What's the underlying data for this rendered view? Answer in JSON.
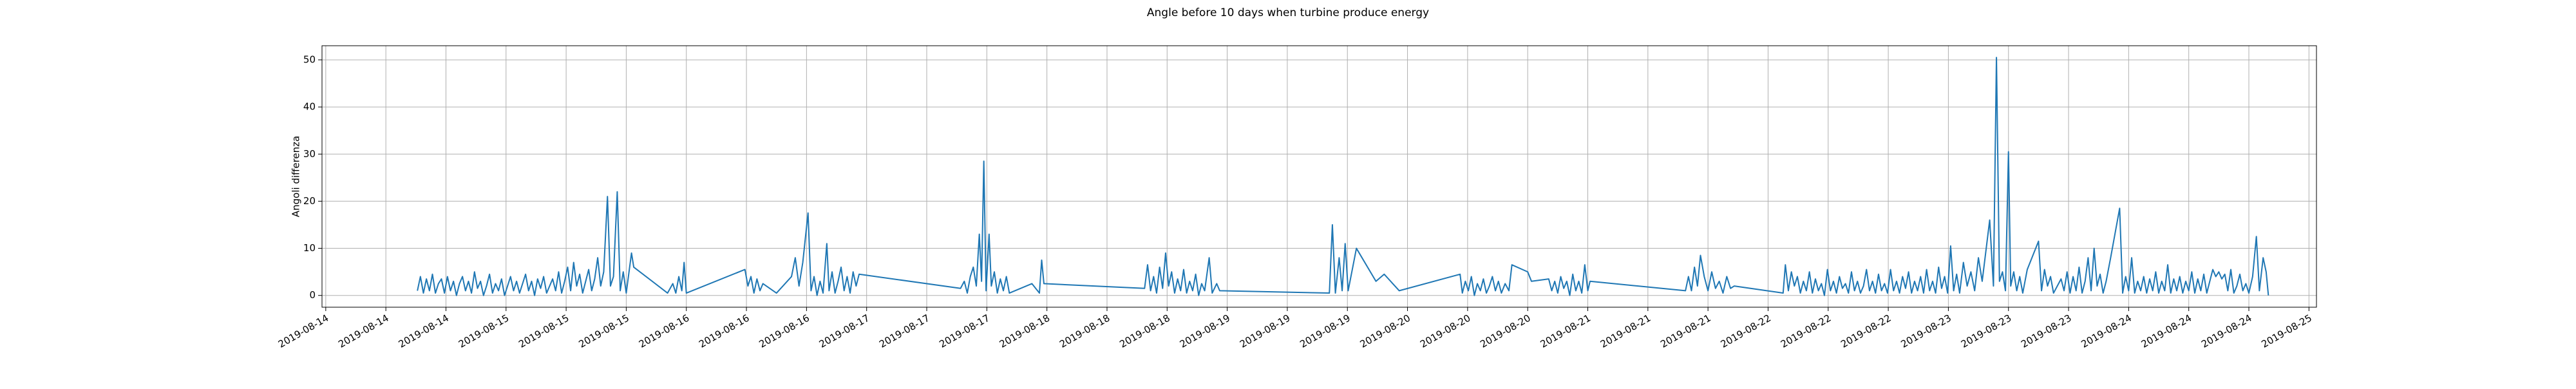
{
  "chart_data": {
    "type": "line",
    "title": "Angle before 10 days when turbine produce energy",
    "y_label": "Angoli differenza",
    "color": "#1f77b4",
    "grid": true,
    "xlim": [
      -0.5,
      265
    ],
    "ylim": [
      -2.5,
      53
    ],
    "yticks": [
      0,
      10,
      20,
      30,
      40,
      50
    ],
    "xticks": [
      {
        "value": 0,
        "label": "2019-08-14"
      },
      {
        "value": 8,
        "label": "2019-08-14"
      },
      {
        "value": 16,
        "label": "2019-08-14"
      },
      {
        "value": 24,
        "label": "2019-08-15"
      },
      {
        "value": 32,
        "label": "2019-08-15"
      },
      {
        "value": 40,
        "label": "2019-08-15"
      },
      {
        "value": 48,
        "label": "2019-08-16"
      },
      {
        "value": 56,
        "label": "2019-08-16"
      },
      {
        "value": 64,
        "label": "2019-08-16"
      },
      {
        "value": 72,
        "label": "2019-08-17"
      },
      {
        "value": 80,
        "label": "2019-08-17"
      },
      {
        "value": 88,
        "label": "2019-08-17"
      },
      {
        "value": 96,
        "label": "2019-08-18"
      },
      {
        "value": 104,
        "label": "2019-08-18"
      },
      {
        "value": 112,
        "label": "2019-08-18"
      },
      {
        "value": 120,
        "label": "2019-08-19"
      },
      {
        "value": 128,
        "label": "2019-08-19"
      },
      {
        "value": 136,
        "label": "2019-08-19"
      },
      {
        "value": 144,
        "label": "2019-08-20"
      },
      {
        "value": 152,
        "label": "2019-08-20"
      },
      {
        "value": 160,
        "label": "2019-08-20"
      },
      {
        "value": 168,
        "label": "2019-08-21"
      },
      {
        "value": 176,
        "label": "2019-08-21"
      },
      {
        "value": 184,
        "label": "2019-08-21"
      },
      {
        "value": 192,
        "label": "2019-08-22"
      },
      {
        "value": 200,
        "label": "2019-08-22"
      },
      {
        "value": 208,
        "label": "2019-08-22"
      },
      {
        "value": 216,
        "label": "2019-08-23"
      },
      {
        "value": 224,
        "label": "2019-08-23"
      },
      {
        "value": 232,
        "label": "2019-08-23"
      },
      {
        "value": 240,
        "label": "2019-08-24"
      },
      {
        "value": 248,
        "label": "2019-08-24"
      },
      {
        "value": 256,
        "label": "2019-08-24"
      },
      {
        "value": 264,
        "label": "2019-08-25"
      }
    ],
    "x": [
      12.2,
      12.6,
      13.0,
      13.4,
      13.8,
      14.2,
      14.6,
      15.0,
      15.4,
      15.8,
      16.2,
      16.6,
      17.0,
      17.4,
      17.8,
      18.2,
      18.6,
      19.0,
      19.4,
      19.8,
      20.2,
      20.6,
      21.0,
      21.4,
      21.8,
      22.2,
      22.6,
      23.0,
      23.4,
      23.8,
      24.2,
      24.6,
      25.0,
      25.4,
      25.8,
      26.2,
      26.6,
      27.0,
      27.4,
      27.8,
      28.2,
      28.6,
      29.0,
      29.4,
      29.8,
      30.2,
      30.6,
      31.0,
      31.4,
      31.8,
      32.2,
      32.6,
      33.0,
      33.4,
      33.8,
      34.2,
      34.6,
      35.0,
      35.4,
      35.8,
      36.2,
      36.6,
      37.0,
      37.5,
      37.9,
      38.3,
      38.8,
      39.2,
      39.6,
      40.0,
      40.7,
      41.0,
      45.5,
      46.2,
      46.6,
      47.0,
      47.4,
      47.7,
      48.0,
      55.8,
      56.2,
      56.6,
      57.0,
      57.4,
      57.8,
      58.2,
      60.0,
      62.0,
      62.5,
      63.0,
      63.5,
      64.2,
      64.6,
      65.0,
      65.4,
      65.8,
      66.2,
      66.7,
      67.0,
      67.4,
      67.8,
      68.2,
      68.6,
      69.0,
      69.4,
      69.8,
      70.2,
      70.6,
      71.0,
      84.5,
      85.0,
      85.4,
      85.8,
      86.2,
      86.6,
      87.0,
      87.3,
      87.6,
      87.9,
      88.3,
      88.6,
      89.0,
      89.4,
      89.8,
      90.2,
      90.6,
      91.0,
      94.0,
      95.0,
      95.3,
      95.6,
      109.0,
      109.4,
      109.8,
      110.2,
      110.6,
      111.0,
      111.4,
      111.8,
      112.2,
      112.6,
      113.0,
      113.4,
      113.8,
      114.2,
      114.6,
      115.0,
      115.4,
      115.8,
      116.2,
      116.6,
      117.0,
      117.6,
      118.0,
      118.6,
      119.0,
      133.6,
      134.0,
      134.4,
      134.9,
      135.3,
      135.7,
      136.1,
      137.2,
      139.8,
      140.9,
      142.9,
      151.0,
      151.3,
      151.7,
      152.1,
      152.5,
      152.9,
      153.3,
      153.7,
      154.1,
      154.5,
      154.9,
      155.3,
      155.7,
      156.1,
      156.5,
      157.0,
      157.5,
      157.9,
      160.0,
      160.5,
      162.8,
      163.2,
      163.6,
      164.0,
      164.4,
      164.8,
      165.2,
      165.6,
      166.0,
      166.4,
      166.8,
      167.2,
      167.6,
      168.0,
      168.3,
      181.0,
      181.4,
      181.8,
      182.2,
      182.6,
      183.0,
      183.5,
      184.0,
      184.5,
      185.0,
      185.5,
      186.0,
      186.5,
      187.0,
      187.5,
      194.0,
      194.3,
      194.7,
      195.1,
      195.5,
      195.9,
      196.3,
      196.7,
      197.1,
      197.5,
      197.9,
      198.3,
      198.7,
      199.1,
      199.5,
      199.9,
      200.3,
      200.7,
      201.1,
      201.5,
      201.9,
      202.3,
      202.7,
      203.1,
      203.5,
      203.9,
      204.3,
      204.7,
      205.1,
      205.5,
      205.9,
      206.3,
      206.7,
      207.1,
      207.5,
      207.9,
      208.3,
      208.7,
      209.1,
      209.5,
      209.9,
      210.3,
      210.7,
      211.1,
      211.5,
      211.9,
      212.3,
      212.7,
      213.1,
      213.5,
      213.9,
      214.3,
      214.7,
      215.1,
      215.5,
      215.9,
      216.3,
      216.7,
      217.1,
      217.5,
      218.0,
      218.5,
      219.0,
      219.5,
      220.0,
      220.5,
      221.5,
      222.0,
      222.4,
      222.8,
      223.2,
      223.6,
      224.0,
      224.3,
      224.7,
      225.1,
      225.5,
      225.9,
      226.5,
      228.0,
      228.4,
      228.8,
      229.2,
      229.6,
      230.0,
      231.0,
      231.4,
      231.8,
      232.2,
      232.6,
      233.0,
      233.4,
      233.8,
      234.2,
      234.6,
      235.0,
      235.4,
      235.8,
      236.2,
      236.6,
      237.0,
      237.6,
      238.8,
      239.2,
      239.6,
      240.0,
      240.4,
      240.8,
      241.2,
      241.6,
      242.0,
      242.4,
      242.8,
      243.2,
      243.6,
      244.0,
      244.4,
      244.8,
      245.2,
      245.6,
      246.0,
      246.4,
      246.8,
      247.2,
      247.6,
      248.0,
      248.4,
      248.8,
      249.2,
      249.6,
      250.0,
      250.4,
      250.8,
      251.2,
      251.6,
      252.0,
      252.4,
      252.8,
      253.2,
      253.6,
      254.0,
      254.4,
      254.8,
      255.2,
      255.6,
      256.0,
      256.5,
      257.0,
      257.4,
      257.9,
      258.3,
      258.6
    ],
    "values": [
      1,
      4,
      0.5,
      3.5,
      1,
      4.5,
      0.5,
      2.5,
      3.5,
      0.5,
      4,
      1,
      3,
      0,
      2.5,
      4,
      1,
      3,
      0.5,
      5,
      1.5,
      3,
      0,
      2,
      4.5,
      0.5,
      2.5,
      1,
      3.5,
      0,
      2,
      4,
      1,
      3,
      0.5,
      2.5,
      4.5,
      1,
      3,
      0,
      3.5,
      1.5,
      4,
      0.5,
      2,
      3.5,
      1,
      5,
      0.5,
      3,
      6,
      1,
      7,
      2,
      4.5,
      0.5,
      3,
      5.5,
      1,
      3.5,
      8,
      2,
      5,
      21,
      2,
      4,
      22,
      1,
      5,
      0.5,
      9,
      6,
      0.5,
      2.5,
      0.5,
      4,
      1,
      7,
      0.5,
      5.5,
      2,
      4,
      0.5,
      3.5,
      1,
      2.5,
      0.5,
      4,
      8,
      2,
      7,
      17.5,
      1,
      4,
      0,
      3,
      0.5,
      11,
      1,
      5,
      0.5,
      3,
      6,
      1,
      4,
      0.5,
      5,
      2,
      4.5,
      1.5,
      3,
      0.5,
      4,
      6,
      2,
      13,
      3,
      28.5,
      1,
      13,
      2,
      5,
      0.5,
      3.5,
      1,
      4,
      0.5,
      2.5,
      0.5,
      7.5,
      2.5,
      1.5,
      6.5,
      1,
      4,
      0.5,
      6,
      1.5,
      9,
      2,
      5,
      0.5,
      3.5,
      1,
      5.5,
      0.5,
      3,
      1,
      4.5,
      0,
      2.5,
      1,
      8,
      0.5,
      2.5,
      1,
      0.5,
      15,
      0.5,
      8,
      1,
      11,
      1,
      10,
      3,
      4.5,
      1,
      4.5,
      0.5,
      3,
      1,
      4,
      0,
      2.5,
      1,
      3.5,
      0.5,
      2,
      4,
      1,
      3,
      0.5,
      2.5,
      1,
      6.5,
      5,
      3,
      3.5,
      1,
      3,
      0.5,
      4,
      1.5,
      3,
      0,
      4.5,
      1,
      3,
      0.5,
      6.5,
      1,
      3,
      1,
      4,
      1,
      6,
      2,
      8.5,
      4,
      1,
      5,
      1.5,
      3,
      0.5,
      4,
      1.5,
      2,
      0.5,
      6.5,
      1,
      5,
      2,
      4,
      0.5,
      3,
      1,
      5,
      0.5,
      3.5,
      1,
      2.5,
      0,
      5.5,
      1,
      3,
      0.5,
      4,
      1.5,
      2.5,
      0.5,
      5,
      1,
      3,
      0.5,
      2,
      5.5,
      1,
      3,
      0.5,
      4.5,
      1,
      2.5,
      0.5,
      5.5,
      1,
      3,
      0.5,
      4,
      1.5,
      5,
      0.5,
      3,
      1,
      4,
      0.5,
      5.5,
      1,
      3,
      0.5,
      6,
      1.5,
      4,
      0.5,
      10.5,
      1,
      4.5,
      0.5,
      7,
      2,
      5,
      1,
      8,
      3,
      16,
      2,
      50.5,
      3,
      5,
      1,
      30.5,
      2,
      5,
      1,
      4,
      0.5,
      5.5,
      11.5,
      1,
      5.5,
      2,
      4,
      0.5,
      3.5,
      1,
      5,
      0.5,
      4,
      1,
      6,
      0.5,
      3,
      8,
      1,
      10,
      2,
      4.5,
      0.5,
      3,
      8,
      18.5,
      0.5,
      4,
      1,
      8,
      0.5,
      3,
      1,
      4,
      0.5,
      3.5,
      1,
      5,
      0.5,
      3,
      1,
      6.5,
      0.5,
      3.5,
      1,
      4,
      0.5,
      3,
      1,
      5,
      0.5,
      3.5,
      1,
      4.5,
      0.5,
      3,
      5.5,
      4,
      5,
      3.5,
      4.5,
      1,
      5.5,
      0.5,
      2,
      4.5,
      1,
      2.5,
      0.5,
      4,
      12.5,
      1,
      8,
      5,
      0
    ]
  }
}
